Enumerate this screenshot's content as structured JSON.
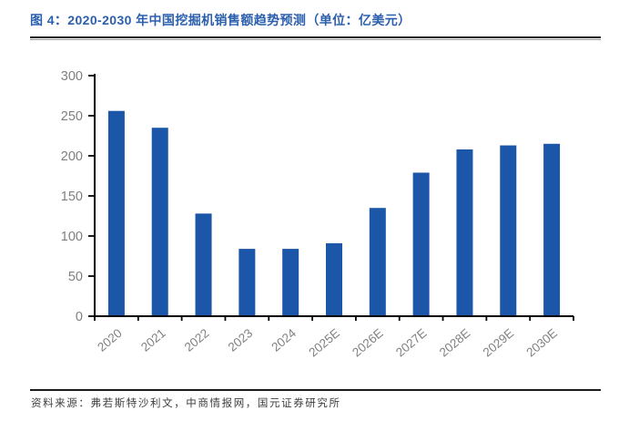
{
  "header": {
    "title": "图 4：2020-2030 年中国挖掘机销售额趋势预测（单位：亿美元）"
  },
  "chart_data": {
    "type": "bar",
    "title": "2020-2030 年中国挖掘机销售额趋势预测",
    "unit": "亿美元",
    "categories": [
      "2020",
      "2021",
      "2022",
      "2023",
      "2024",
      "2025E",
      "2026E",
      "2027E",
      "2028E",
      "2029E",
      "2030E"
    ],
    "values": [
      256,
      235,
      128,
      84,
      84,
      91,
      135,
      179,
      208,
      213,
      215
    ],
    "ylim": [
      0,
      300
    ],
    "yticks": [
      0,
      50,
      100,
      150,
      200,
      250,
      300
    ],
    "grid": false,
    "legend": "none",
    "bar_color": "#1C56A8",
    "axis_color": "#000000",
    "tick_label_color": "#7F7F7F"
  },
  "footer": {
    "source": "资料来源：弗若斯特沙利文，中商情报网，国元证券研究所"
  },
  "colors": {
    "title_blue": "#2B5FAE",
    "rule_dark": "#1c1c1c"
  }
}
